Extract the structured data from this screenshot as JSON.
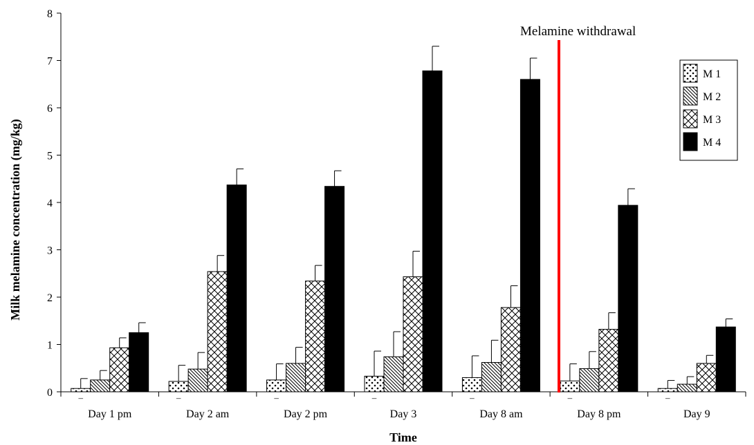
{
  "chart_data": {
    "type": "bar",
    "xlabel": "Time",
    "ylabel": "Milk melamine concentration (mg/kg)",
    "ylim": [
      0,
      8
    ],
    "yticks": [
      0,
      1,
      2,
      3,
      4,
      5,
      6,
      7,
      8
    ],
    "categories": [
      "Day 1 pm",
      "Day 2 am",
      "Day 2 pm",
      "Day 3",
      "Day 8 am",
      "Day 8 pm",
      "Day 9"
    ],
    "series": [
      {
        "name": "M 1",
        "pattern": "dots",
        "values": [
          0.07,
          0.22,
          0.25,
          0.33,
          0.3,
          0.23,
          0.07
        ],
        "errors": [
          0.21,
          0.34,
          0.34,
          0.53,
          0.46,
          0.36,
          0.17
        ]
      },
      {
        "name": "M 2",
        "pattern": "diagonal",
        "values": [
          0.25,
          0.48,
          0.6,
          0.74,
          0.62,
          0.49,
          0.16
        ],
        "errors": [
          0.2,
          0.35,
          0.34,
          0.53,
          0.47,
          0.36,
          0.16
        ]
      },
      {
        "name": "M 3",
        "pattern": "crosshatch",
        "values": [
          0.93,
          2.54,
          2.34,
          2.43,
          1.78,
          1.32,
          0.6
        ],
        "errors": [
          0.21,
          0.34,
          0.33,
          0.54,
          0.46,
          0.35,
          0.17
        ]
      },
      {
        "name": "M 4",
        "pattern": "solid",
        "values": [
          1.25,
          4.37,
          4.34,
          6.78,
          6.6,
          3.94,
          1.37
        ],
        "errors": [
          0.21,
          0.34,
          0.33,
          0.52,
          0.45,
          0.35,
          0.17
        ]
      }
    ],
    "annotation": {
      "text": "Melamine withdrawal",
      "color": "#ff0000",
      "between": [
        "Day 8 am",
        "Day 8 pm"
      ]
    },
    "legend_position": "top-right",
    "grid": false,
    "dash_marks": [
      "–",
      "–",
      "–",
      "–",
      "–",
      "–",
      "–"
    ]
  }
}
